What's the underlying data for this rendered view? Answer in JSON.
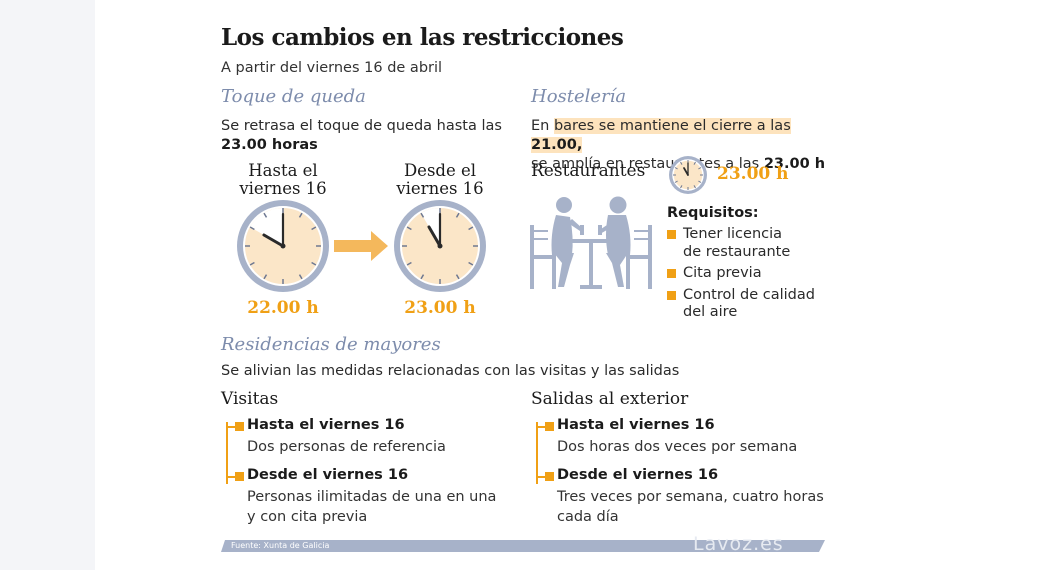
{
  "title": "Los cambios en las restricciones",
  "subtitle": "A partir del viernes 16 de abril",
  "toque": {
    "heading": "Toque de queda",
    "line1": "Se retrasa el toque de queda hasta las",
    "line2": "23.00 horas",
    "before": {
      "label1": "Hasta el",
      "label2": "viernes 16",
      "time": "22.00 h",
      "hour": 22
    },
    "after": {
      "label1": "Desde el",
      "label2": "viernes 16",
      "time": "23.00 h",
      "hour": 23
    }
  },
  "hosteleria": {
    "heading": "Hostelería",
    "line1_pre": "En ",
    "line1_hl": "bares se mantiene el cierre a las ",
    "line1_bold": "21.00,",
    "line2_pre": "se amplía en restaurantes a las ",
    "line2_bold": "23.00 h",
    "restaurantes_label": "Restaurantes",
    "restaurantes_time": "23.00 h",
    "requisitos_heading": "Requisitos:",
    "requisitos": [
      {
        "line1": "Tener licencia",
        "line2": "de restaurante"
      },
      {
        "line1": "Cita previa",
        "line2": ""
      },
      {
        "line1": "Control de calidad",
        "line2": "del aire"
      }
    ]
  },
  "residencias": {
    "heading": "Residencias de mayores",
    "intro": "Se alivian las medidas relacionadas con las visitas y las salidas",
    "visitas": {
      "heading": "Visitas",
      "items": [
        {
          "title": "Hasta el viernes 16",
          "line1": "Dos personas de referencia",
          "line2": ""
        },
        {
          "title": "Desde el viernes 16",
          "line1": "Personas ilimitadas de una en una",
          "line2": "y con cita previa"
        }
      ]
    },
    "salidas": {
      "heading": "Salidas al exterior",
      "items": [
        {
          "title": "Hasta el viernes 16",
          "line1": "Dos horas dos veces por semana",
          "line2": ""
        },
        {
          "title": "Desde el viernes 16",
          "line1": "Tres veces por semana, cuatro horas",
          "line2": "cada día"
        }
      ]
    }
  },
  "footer": {
    "source": "Fuente: Xunta de Galicia",
    "brand": "Lavoz.es"
  },
  "colors": {
    "accent": "#f0a015",
    "section": "#7d8cac",
    "clock_rim": "#a7b2c9",
    "clock_face": "#fbe6c8",
    "highlight": "#fde3bd"
  }
}
